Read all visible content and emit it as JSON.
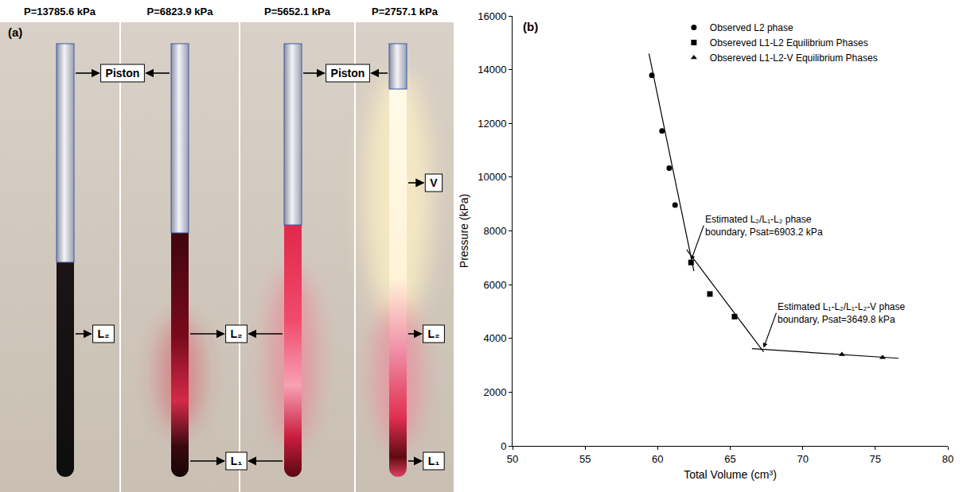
{
  "panel_a": {
    "label": "(a)",
    "tubes": [
      {
        "header": "P=13785.6 kPa"
      },
      {
        "header": "P=6823.9 kPa"
      },
      {
        "header": "P=5652.1 kPa"
      },
      {
        "header": "P=2757.1 kPa"
      }
    ],
    "labels": [
      "Piston",
      "L₂",
      "L₂",
      "L₁",
      "Piston",
      "V",
      "L₂",
      "L₁"
    ]
  },
  "chart_data": {
    "type": "scatter",
    "panel_label": "(b)",
    "x_label": "Total Volume (cm³)",
    "y_label": "Pressure (kPa)",
    "xlim": [
      50,
      80
    ],
    "xticks": [
      50,
      55,
      60,
      65,
      70,
      75,
      80
    ],
    "ylim": [
      0,
      16000
    ],
    "yticks": [
      0,
      2000,
      4000,
      6000,
      8000,
      10000,
      12000,
      14000,
      16000
    ],
    "grid": false,
    "legend": "top",
    "series": [
      {
        "name": "Observed L2 phase",
        "type": "scatter",
        "marker": "circle",
        "color": "#000000",
        "x": [
          59.6,
          60.3,
          60.8,
          61.2
        ],
        "values": [
          13786,
          11720,
          10340,
          8960
        ]
      },
      {
        "name": "Obsereved L1-L2 Equilibrium Phases",
        "type": "scatter",
        "marker": "square",
        "color": "#000000",
        "x": [
          62.3,
          63.6,
          65.3
        ],
        "values": [
          6824,
          5652,
          4810
        ]
      },
      {
        "name": "Obsereved L1-L2-V Equilibrium Phases",
        "type": "scatter",
        "marker": "triangle",
        "color": "#000000",
        "x": [
          72.7,
          75.5
        ],
        "values": [
          3400,
          3290
        ]
      },
      {
        "type": "line",
        "color": "#000000",
        "x": [
          59.4,
          62.5
        ],
        "values": [
          14600,
          6500
        ]
      },
      {
        "type": "line",
        "color": "#000000",
        "x": [
          62.0,
          67.3
        ],
        "values": [
          7300,
          3500
        ]
      },
      {
        "type": "line",
        "color": "#000000",
        "x": [
          66.5,
          76.6
        ],
        "values": [
          3620,
          3260
        ]
      }
    ],
    "annotations": [
      {
        "text": "Estimated L₂/L₁-L₂ phase boundary, Psat=6903.2 kPa",
        "x": 62.3,
        "y": 6903.2
      },
      {
        "text": "Estimated L₁-L₂/L₁-L₂-V phase boundary, Psat=3649.8 kPa",
        "x": 67.3,
        "y": 3649.8
      }
    ]
  }
}
